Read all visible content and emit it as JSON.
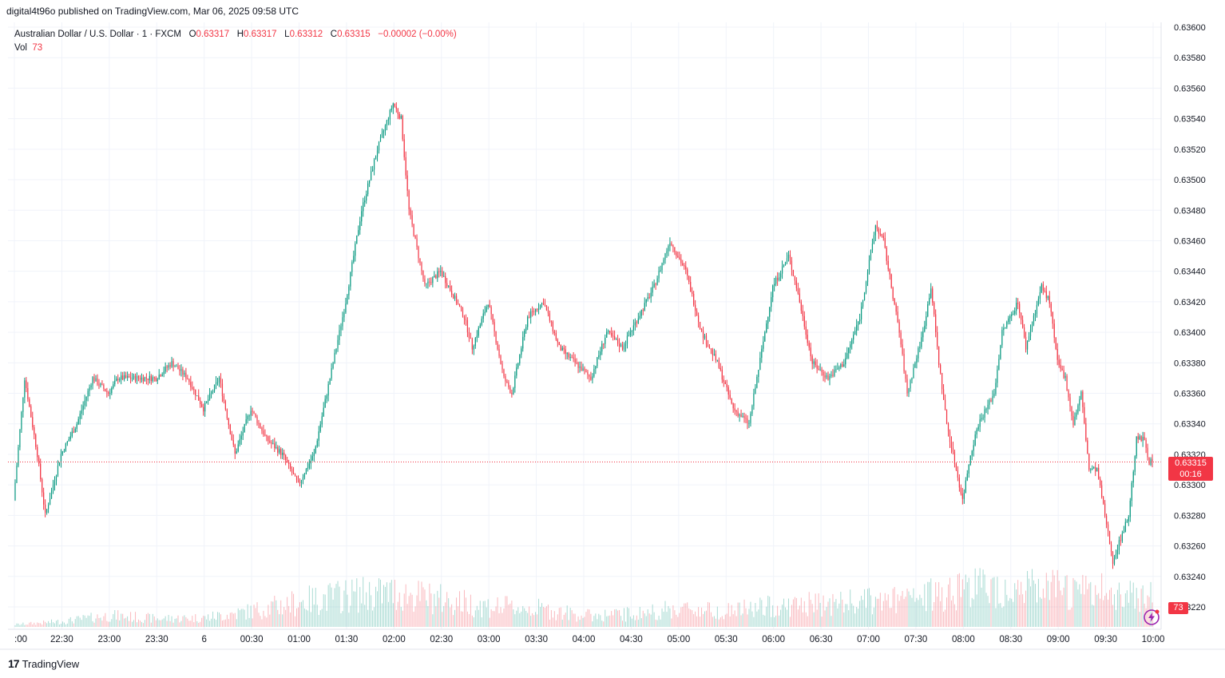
{
  "header": {
    "published_by": "digital4t96o published on TradingView.com, Mar 06, 2025 09:58 UTC"
  },
  "legend": {
    "symbol": "Australian Dollar / U.S. Dollar · 1 · FXCM",
    "open_label": "O",
    "open": "0.63317",
    "high_label": "H",
    "high": "0.63317",
    "low_label": "L",
    "low": "0.63312",
    "close_label": "C",
    "close": "0.63315",
    "change": "−0.00002 (−0.00%)",
    "vol_label": "Vol",
    "vol": "73"
  },
  "price_tag": {
    "price": "0.63315",
    "countdown": "00:16"
  },
  "volume_tag": "73",
  "brand": {
    "logo": "17",
    "name": "TradingView"
  },
  "colors": {
    "up": "#089981",
    "down": "#f23645",
    "grid": "#f0f3fa",
    "text": "#131722"
  },
  "chart_data": {
    "type": "candlestick",
    "interval": "1 minute",
    "y_axis_ticks": [
      "0.63600",
      "0.63580",
      "0.63560",
      "0.63540",
      "0.63520",
      "0.63500",
      "0.63480",
      "0.63460",
      "0.63440",
      "0.63420",
      "0.63400",
      "0.63380",
      "0.63360",
      "0.63340",
      "0.63320",
      "0.63300",
      "0.63280",
      "0.63260",
      "0.63240",
      "0.63220"
    ],
    "x_axis_ticks": [
      ":00",
      "22:30",
      "23:00",
      "23:30",
      "6",
      "00:30",
      "01:00",
      "01:30",
      "02:00",
      "02:30",
      "03:00",
      "03:30",
      "04:00",
      "04:30",
      "05:00",
      "05:30",
      "06:00",
      "06:30",
      "07:00",
      "07:30",
      "08:00",
      "08:30",
      "09:00",
      "09:30",
      "10:00"
    ],
    "ylim": [
      0.6321,
      0.636
    ],
    "last_price": 0.63315,
    "price_path": {
      "times": [
        "22:00",
        "22:07",
        "22:15",
        "22:20",
        "22:30",
        "22:40",
        "22:50",
        "23:00",
        "23:06",
        "23:15",
        "23:30",
        "23:40",
        "23:50",
        "00:00",
        "00:10",
        "00:20",
        "00:30",
        "00:40",
        "00:50",
        "01:00",
        "01:10",
        "01:20",
        "01:30",
        "01:40",
        "01:50",
        "02:00",
        "02:05",
        "02:10",
        "02:20",
        "02:30",
        "02:35",
        "02:40",
        "02:45",
        "02:50",
        "03:00",
        "03:10",
        "03:15",
        "03:25",
        "03:35",
        "03:45",
        "03:55",
        "04:05",
        "04:15",
        "04:25",
        "04:35",
        "04:45",
        "04:55",
        "05:05",
        "05:15",
        "05:25",
        "05:35",
        "05:45",
        "05:50",
        "06:00",
        "06:10",
        "06:15",
        "06:25",
        "06:35",
        "06:45",
        "06:55",
        "07:05",
        "07:10",
        "07:20",
        "07:25",
        "07:35",
        "07:40",
        "07:45",
        "07:50",
        "08:00",
        "08:05",
        "08:10",
        "08:20",
        "08:25",
        "08:35",
        "08:40",
        "08:50",
        "08:55",
        "09:00",
        "09:05",
        "09:10",
        "09:15",
        "09:20",
        "09:25",
        "09:30",
        "09:35",
        "09:45",
        "09:50",
        "09:55",
        "09:58"
      ],
      "values": [
        0.6329,
        0.6337,
        0.6332,
        0.6328,
        0.6332,
        0.6334,
        0.6337,
        0.6336,
        0.6337,
        0.6337,
        0.6337,
        0.6338,
        0.6337,
        0.6335,
        0.6337,
        0.6332,
        0.6335,
        0.6333,
        0.6332,
        0.633,
        0.6332,
        0.6337,
        0.6342,
        0.6348,
        0.6352,
        0.6355,
        0.6354,
        0.6348,
        0.6343,
        0.6344,
        0.6343,
        0.6342,
        0.6341,
        0.6339,
        0.6342,
        0.6337,
        0.6336,
        0.6341,
        0.6342,
        0.6339,
        0.6338,
        0.6337,
        0.634,
        0.6339,
        0.6341,
        0.6343,
        0.6346,
        0.6344,
        0.634,
        0.6338,
        0.6335,
        0.6334,
        0.6337,
        0.6343,
        0.6345,
        0.6343,
        0.6338,
        0.6337,
        0.6338,
        0.6341,
        0.6347,
        0.6346,
        0.634,
        0.6336,
        0.634,
        0.6343,
        0.6338,
        0.6334,
        0.6329,
        0.6332,
        0.6334,
        0.6336,
        0.634,
        0.6342,
        0.6339,
        0.6343,
        0.6342,
        0.6338,
        0.6337,
        0.6334,
        0.6336,
        0.6331,
        0.6331,
        0.6328,
        0.6325,
        0.6328,
        0.6333,
        0.6333,
        0.63315
      ]
    },
    "volume_ylim": [
      0,
      200
    ],
    "volume_profile": {
      "times": [
        "22:00",
        "22:30",
        "23:00",
        "23:30",
        "00:00",
        "00:30",
        "01:00",
        "01:30",
        "02:00",
        "02:30",
        "03:00",
        "03:30",
        "04:00",
        "04:30",
        "05:00",
        "05:30",
        "06:00",
        "06:30",
        "07:00",
        "07:30",
        "08:00",
        "08:30",
        "09:00",
        "09:30",
        "09:58"
      ],
      "values": [
        5,
        12,
        25,
        18,
        20,
        35,
        55,
        70,
        75,
        60,
        45,
        40,
        25,
        28,
        40,
        35,
        45,
        50,
        55,
        60,
        90,
        85,
        80,
        75,
        73
      ]
    }
  }
}
